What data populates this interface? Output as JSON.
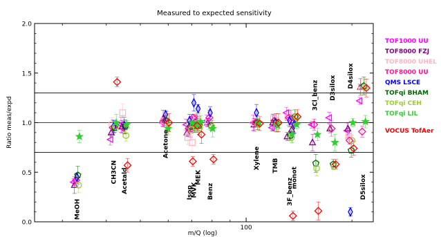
{
  "chart_data": {
    "type": "scatter",
    "title": "Measured to expected sensitivity",
    "xlabel": "m/Q (log)",
    "ylabel": "Ratio meas/expd",
    "x_scale": "log",
    "xlim": [
      25,
      230
    ],
    "ylim": [
      0,
      2
    ],
    "x_ticks": [
      {
        "value": 100,
        "label": "100"
      }
    ],
    "y_ticks": [
      {
        "value": 0,
        "label": "0.0"
      },
      {
        "value": 0.5,
        "label": "0.5"
      },
      {
        "value": 1,
        "label": "1.0"
      },
      {
        "value": 1.5,
        "label": "1.5"
      },
      {
        "value": 2,
        "label": "2.0"
      }
    ],
    "reference_lines": [
      0.7,
      1.0,
      1.3
    ],
    "compounds": [
      {
        "label": "MeOH",
        "x": 33,
        "label_y": 0.02
      },
      {
        "label": "CH3CN",
        "x": 42,
        "label_y": 0.38
      },
      {
        "label": "Acetald",
        "x": 45,
        "label_y": 0.28
      },
      {
        "label": "Acetone",
        "x": 59,
        "label_y": 0.64
      },
      {
        "label": "Isop",
        "x": 69,
        "label_y": 0.22
      },
      {
        "label": "MVK",
        "x": 71,
        "label_y": 0.24
      },
      {
        "label": "MEK",
        "x": 73,
        "label_y": 0.37
      },
      {
        "label": "Benz",
        "x": 79,
        "label_y": 0.22
      },
      {
        "label": "Xylene",
        "x": 107,
        "label_y": 0.52
      },
      {
        "label": "TMB",
        "x": 121,
        "label_y": 0.49
      },
      {
        "label": "3F_benz",
        "x": 133,
        "label_y": 0.16
      },
      {
        "label": "monot",
        "x": 137,
        "label_y": 0.33
      },
      {
        "label": "3Cl_benz",
        "x": 157,
        "label_y": 1.12
      },
      {
        "label": "D3silox",
        "x": 176,
        "label_y": 1.22
      },
      {
        "label": "D4silox",
        "x": 198,
        "label_y": 1.34
      },
      {
        "label": "D5silox",
        "x": 215,
        "label_y": 0.22
      }
    ],
    "series": [
      {
        "name": "TOF1000 UU",
        "color": "#ff00ff",
        "marker": "triangle-left",
        "points": [
          [
            33,
            0.4
          ],
          [
            42,
            0.83
          ],
          [
            45,
            0.98
          ],
          [
            59,
            1.0
          ],
          [
            69,
            0.98
          ],
          [
            71,
            0.93
          ],
          [
            73,
            1.05
          ],
          [
            79,
            1.02
          ],
          [
            107,
            1.0
          ],
          [
            121,
            0.95
          ],
          [
            133,
            1.1
          ],
          [
            137,
            1.05
          ],
          [
            157,
            0.98
          ],
          [
            176,
            1.05
          ],
          [
            198,
            0.92
          ],
          [
            215,
            1.22
          ]
        ]
      },
      {
        "name": "TOF8000 FZJ",
        "color": "#7f007f",
        "marker": "triangle-up",
        "points": [
          [
            33,
            0.37
          ],
          [
            42,
            0.9
          ],
          [
            45,
            0.96
          ],
          [
            59,
            1.04
          ],
          [
            69,
            0.9
          ],
          [
            71,
            1.0
          ],
          [
            73,
            1.0
          ],
          [
            79,
            1.0
          ],
          [
            107,
            0.98
          ],
          [
            121,
            1.0
          ],
          [
            133,
            0.86
          ],
          [
            137,
            0.93
          ],
          [
            157,
            0.8
          ],
          [
            176,
            0.94
          ],
          [
            198,
            0.94
          ],
          [
            215,
            1.36
          ]
        ]
      },
      {
        "name": "TOF8000 UHEL",
        "color": "#ffb6c1",
        "marker": "square",
        "points": [
          [
            42,
            0.98
          ],
          [
            45,
            1.1
          ],
          [
            59,
            1.02
          ],
          [
            69,
            0.85
          ],
          [
            71,
            0.8
          ],
          [
            73,
            1.05
          ],
          [
            79,
            1.0
          ],
          [
            107,
            1.0
          ],
          [
            121,
            1.04
          ],
          [
            133,
            1.05
          ],
          [
            137,
            1.0
          ],
          [
            198,
            0.86
          ],
          [
            215,
            1.36
          ]
        ]
      },
      {
        "name": "TOF8000 UU",
        "color": "#ff1493",
        "marker": "diamond",
        "points": [
          [
            33,
            0.42
          ],
          [
            42,
            0.95
          ],
          [
            45,
            0.95
          ],
          [
            59,
            1.02
          ],
          [
            69,
            0.94
          ],
          [
            71,
            1.05
          ],
          [
            73,
            0.97
          ],
          [
            79,
            1.05
          ],
          [
            107,
            1.0
          ],
          [
            121,
            1.02
          ],
          [
            133,
            1.05
          ],
          [
            137,
            1.0
          ],
          [
            157,
            0.98
          ],
          [
            176,
            0.94
          ],
          [
            198,
            0.82
          ],
          [
            215,
            0.91
          ]
        ]
      },
      {
        "name": "QMS LSCE",
        "color": "#0000ff",
        "marker": "thin-diamond",
        "points": [
          [
            33,
            0.45
          ],
          [
            42,
            0.96
          ],
          [
            45,
            0.97
          ],
          [
            59,
            1.08
          ],
          [
            69,
            1.02
          ],
          [
            71,
            1.2
          ],
          [
            73,
            1.14
          ],
          [
            79,
            1.1
          ],
          [
            107,
            1.1
          ],
          [
            121,
            1.0
          ],
          [
            133,
            1.02
          ],
          [
            137,
            0.98
          ],
          [
            198,
            0.1
          ]
        ]
      },
      {
        "name": "TOFqi BHAM",
        "color": "#006400",
        "marker": "pentagon",
        "points": [
          [
            33,
            0.47
          ],
          [
            42,
            0.95
          ],
          [
            45,
            0.96
          ],
          [
            59,
            1.02
          ],
          [
            69,
            0.96
          ],
          [
            71,
            0.97
          ],
          [
            73,
            0.97
          ],
          [
            79,
            0.97
          ],
          [
            107,
            1.0
          ],
          [
            121,
            1.0
          ],
          [
            133,
            0.87
          ],
          [
            137,
            1.06
          ],
          [
            157,
            0.59
          ],
          [
            176,
            0.58
          ],
          [
            198,
            0.72
          ],
          [
            215,
            1.37
          ]
        ]
      },
      {
        "name": "TOFqi CEH",
        "color": "#9acd32",
        "marker": "circle",
        "points": [
          [
            33,
            0.37
          ],
          [
            42,
            0.96
          ],
          [
            45,
            0.87
          ],
          [
            59,
            0.97
          ],
          [
            69,
            0.93
          ],
          [
            71,
            0.96
          ],
          [
            73,
            0.95
          ],
          [
            79,
            0.96
          ],
          [
            107,
            0.98
          ],
          [
            121,
            0.98
          ],
          [
            133,
            0.85
          ],
          [
            137,
            1.06
          ],
          [
            157,
            0.54
          ],
          [
            176,
            0.56
          ],
          [
            198,
            0.82
          ],
          [
            215,
            1.36
          ]
        ]
      },
      {
        "name": "TOFqi LIL",
        "color": "#32cd32",
        "marker": "star",
        "points": [
          [
            33,
            0.86
          ],
          [
            42,
            1.0
          ],
          [
            45,
            0.98
          ],
          [
            59,
            0.94
          ],
          [
            69,
            1.0
          ],
          [
            71,
            0.98
          ],
          [
            73,
            1.01
          ],
          [
            79,
            0.94
          ],
          [
            107,
            1.0
          ],
          [
            121,
            0.97
          ],
          [
            133,
            0.88
          ],
          [
            137,
            0.98
          ],
          [
            157,
            0.88
          ],
          [
            176,
            0.8
          ],
          [
            198,
            1.0
          ],
          [
            215,
            1.01
          ]
        ]
      },
      {
        "name": "VOCUS TofAer",
        "color": "#ff0000",
        "marker": "diamond",
        "points": [
          [
            42,
            1.41
          ],
          [
            45,
            0.57
          ],
          [
            59,
            1.0
          ],
          [
            69,
            0.61
          ],
          [
            71,
            0.97
          ],
          [
            73,
            0.88
          ],
          [
            79,
            0.63
          ],
          [
            107,
            0.99
          ],
          [
            121,
            1.0
          ],
          [
            133,
            0.06
          ],
          [
            137,
            1.06
          ],
          [
            157,
            0.11
          ],
          [
            176,
            0.58
          ],
          [
            198,
            0.74
          ],
          [
            215,
            1.35
          ]
        ]
      }
    ],
    "legend_position": "right"
  }
}
